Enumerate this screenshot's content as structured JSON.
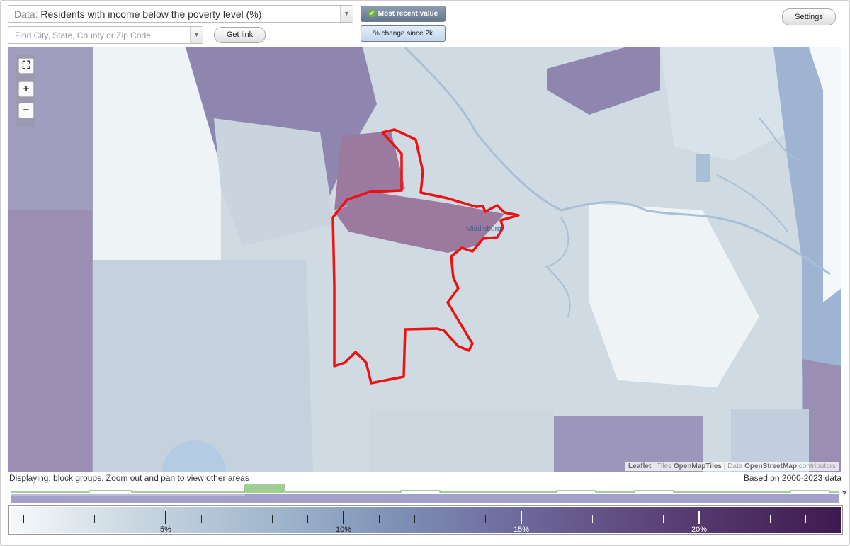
{
  "data_selector": {
    "prefix": "Data:",
    "value": "Residents with income below the poverty level (%)"
  },
  "search": {
    "placeholder": "Find City, State, County or Zip Code"
  },
  "buttons": {
    "get_link": "Get link",
    "settings": "Settings"
  },
  "toggles": {
    "most_recent": "Most recent value",
    "pct_change": "% change since 2k"
  },
  "map": {
    "place_label": "Middleburg",
    "attribution": {
      "leaflet": "Leaflet",
      "sep1": "|",
      "tiles_word": "Tiles",
      "tiles": "OpenMapTiles",
      "sep2": "|",
      "data_word": "Data",
      "osm": "OpenStreetMap",
      "contributors": "contributors"
    },
    "zoom": {
      "fullscreen": "⛶",
      "zoom_in": "+",
      "zoom_out": "−"
    }
  },
  "status": {
    "displaying": "Displaying: block groups. Zoom out and pan to view other areas",
    "based_on": "Based on 2000-2023 data"
  },
  "histogram_help": "?",
  "legend": {
    "labels": [
      {
        "text": "5%",
        "light": false
      },
      {
        "text": "10%",
        "light": false
      },
      {
        "text": "15%",
        "light": true
      },
      {
        "text": "20%",
        "light": true
      }
    ]
  },
  "colors": {
    "boundary": "#ee1111",
    "histogram_highlight": "#9fcf8f",
    "histogram_band": "#a3a1c9",
    "toggle_active": "#6f7f95"
  }
}
